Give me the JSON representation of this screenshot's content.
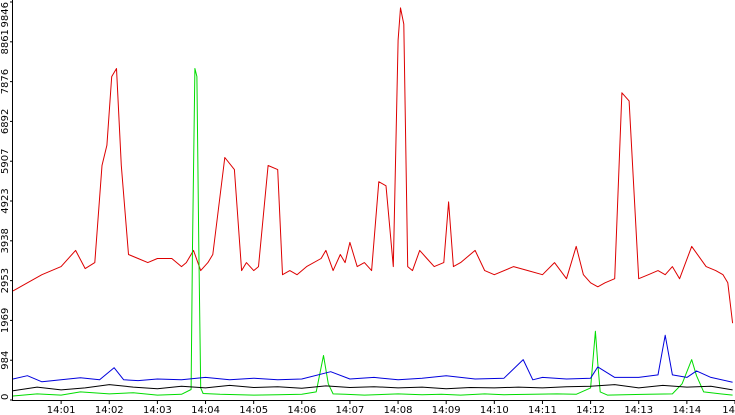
{
  "chart_data": {
    "type": "line",
    "title": "",
    "xlabel": "",
    "ylabel": "",
    "ylim": [
      0,
      9846
    ],
    "xlim": [
      "14:00",
      "14:15"
    ],
    "grid": false,
    "y_ticks": [
      "0",
      "984",
      "1969",
      "2953",
      "3938",
      "4923",
      "5907",
      "6892",
      "7876",
      "8861",
      "9846"
    ],
    "x_ticks": [
      "14:01",
      "14:02",
      "14:03",
      "14:04",
      "14:05",
      "14:06",
      "14:07",
      "14:08",
      "14:09",
      "14:10",
      "14:11",
      "14:12",
      "14:13",
      "14:14",
      "14"
    ],
    "x_tick_minutes": [
      1,
      2,
      3,
      4,
      5,
      6,
      7,
      8,
      9,
      10,
      11,
      12,
      13,
      14,
      15
    ],
    "series": [
      {
        "color": "#dd0000",
        "x": [
          0,
          0.3,
          0.6,
          1.0,
          1.3,
          1.5,
          1.7,
          1.85,
          1.95,
          2.05,
          2.15,
          2.25,
          2.4,
          2.6,
          2.8,
          3.0,
          3.3,
          3.5,
          3.6,
          3.75,
          3.9,
          4.05,
          4.15,
          4.4,
          4.6,
          4.75,
          4.85,
          5.0,
          5.1,
          5.3,
          5.5,
          5.6,
          5.75,
          5.9,
          6.1,
          6.4,
          6.5,
          6.65,
          6.8,
          6.9,
          7.0,
          7.15,
          7.3,
          7.45,
          7.6,
          7.75,
          7.9,
          8.0,
          8.05,
          8.12,
          8.2,
          8.3,
          8.45,
          8.6,
          8.75,
          8.95,
          9.05,
          9.15,
          9.3,
          9.6,
          9.8,
          10.0,
          10.4,
          10.7,
          11.0,
          11.25,
          11.5,
          11.7,
          11.85,
          12.0,
          12.15,
          12.3,
          12.5,
          12.65,
          12.8,
          13.0,
          13.2,
          13.4,
          13.55,
          13.7,
          13.85,
          14.1,
          14.4,
          14.6,
          14.75,
          14.85,
          14.95
        ],
        "values": [
          2700,
          2900,
          3100,
          3300,
          3700,
          3250,
          3400,
          5800,
          6300,
          8000,
          8200,
          5800,
          3600,
          3500,
          3400,
          3500,
          3500,
          3300,
          3400,
          3700,
          3200,
          3400,
          3600,
          6000,
          5700,
          3200,
          3400,
          3200,
          3300,
          5800,
          5700,
          3100,
          3200,
          3100,
          3300,
          3500,
          3700,
          3200,
          3600,
          3400,
          3900,
          3300,
          3400,
          3200,
          5400,
          5300,
          3300,
          8900,
          9700,
          9300,
          3300,
          3200,
          3700,
          3500,
          3300,
          3400,
          4900,
          3300,
          3400,
          3700,
          3200,
          3100,
          3300,
          3200,
          3100,
          3400,
          3000,
          3800,
          3100,
          2900,
          2800,
          2900,
          3000,
          7600,
          7400,
          3000,
          3100,
          3200,
          3100,
          3300,
          3000,
          3800,
          3300,
          3200,
          3100,
          2900,
          1900
        ]
      },
      {
        "color": "#00dd00",
        "x": [
          0,
          0.5,
          1.0,
          1.4,
          2.0,
          2.5,
          3.0,
          3.5,
          3.7,
          3.73,
          3.78,
          3.82,
          3.86,
          3.9,
          3.95,
          4.3,
          5.0,
          5.5,
          6.0,
          6.3,
          6.45,
          6.55,
          6.65,
          6.9,
          7.3,
          8.0,
          8.5,
          8.9,
          9.3,
          9.8,
          10.2,
          10.8,
          11.3,
          11.7,
          12.0,
          12.1,
          12.15,
          12.2,
          12.35,
          12.7,
          13.2,
          13.7,
          13.9,
          14.1,
          14.2,
          14.35,
          14.7,
          14.95
        ],
        "values": [
          100,
          150,
          120,
          200,
          150,
          180,
          120,
          140,
          260,
          3800,
          8200,
          8000,
          3800,
          300,
          160,
          140,
          120,
          130,
          140,
          200,
          1100,
          400,
          150,
          140,
          120,
          150,
          130,
          140,
          120,
          150,
          130,
          140,
          150,
          140,
          300,
          1700,
          900,
          200,
          120,
          130,
          140,
          150,
          400,
          1000,
          600,
          200,
          150,
          120
        ]
      },
      {
        "color": "#0000dd",
        "x": [
          0,
          0.3,
          0.6,
          1.0,
          1.4,
          1.8,
          2.1,
          2.3,
          2.6,
          3.0,
          3.5,
          4.0,
          4.5,
          5.0,
          5.5,
          6.0,
          6.6,
          7.0,
          7.5,
          8.0,
          8.5,
          9.0,
          9.6,
          10.2,
          10.6,
          10.8,
          11.0,
          11.5,
          12.0,
          12.15,
          12.5,
          13.0,
          13.4,
          13.55,
          13.7,
          14.0,
          14.2,
          14.5,
          14.95
        ],
        "values": [
          520,
          600,
          450,
          500,
          550,
          500,
          800,
          500,
          480,
          520,
          500,
          560,
          500,
          540,
          500,
          520,
          700,
          520,
          560,
          500,
          540,
          600,
          520,
          540,
          1000,
          500,
          560,
          520,
          540,
          820,
          560,
          560,
          620,
          1600,
          620,
          560,
          720,
          560,
          440
        ]
      },
      {
        "color": "#000000",
        "x": [
          0,
          0.5,
          1.0,
          1.5,
          2.0,
          2.5,
          3.0,
          3.5,
          4.0,
          4.5,
          5.0,
          5.5,
          6.0,
          6.5,
          7.0,
          7.5,
          8.0,
          8.5,
          9.0,
          9.5,
          10.0,
          10.5,
          11.0,
          11.5,
          12.0,
          12.5,
          13.0,
          13.5,
          14.0,
          14.5,
          14.95
        ],
        "values": [
          230,
          320,
          250,
          300,
          380,
          320,
          280,
          340,
          300,
          360,
          310,
          330,
          290,
          350,
          310,
          330,
          300,
          320,
          280,
          310,
          300,
          320,
          300,
          330,
          340,
          380,
          300,
          360,
          320,
          340,
          250
        ]
      }
    ]
  }
}
